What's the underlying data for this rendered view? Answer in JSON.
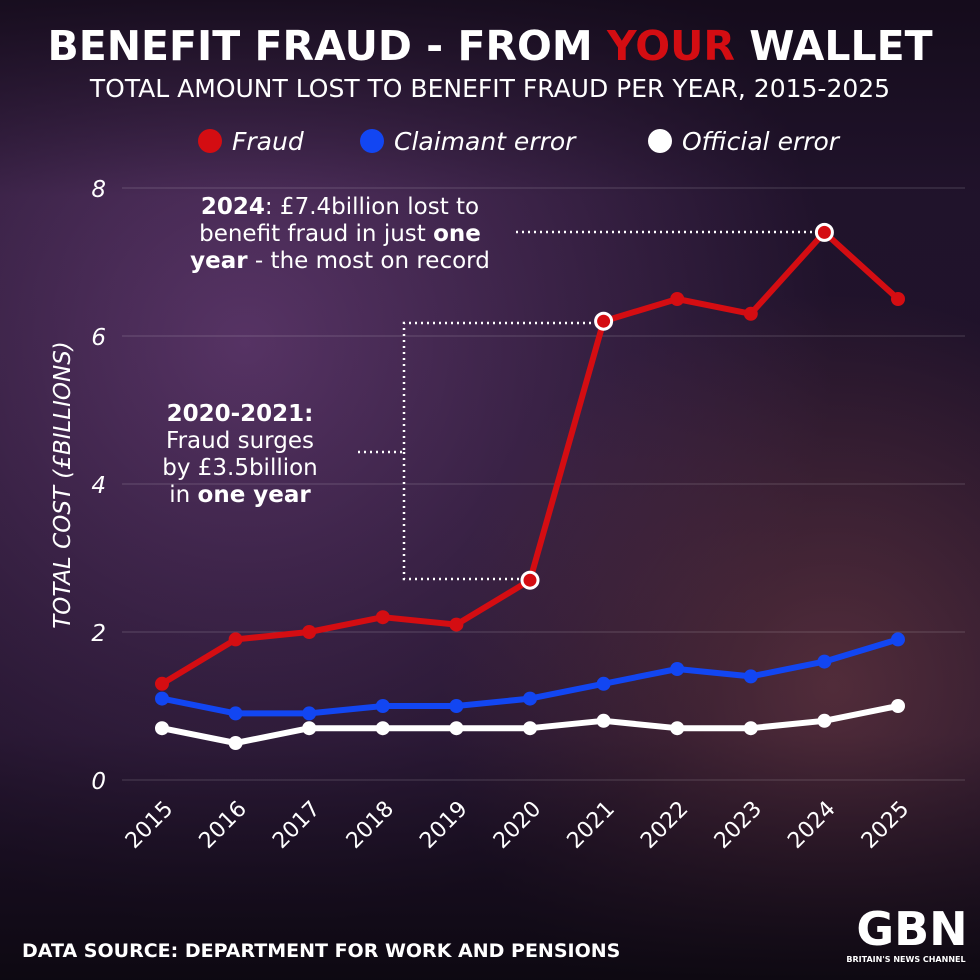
{
  "chart_data": {
    "type": "line",
    "title": {
      "before": "BENEFIT FRAUD - FROM",
      "highlight": "YOUR",
      "after": "WALLET"
    },
    "subtitle": "TOTAL AMOUNT LOST TO BENEFIT FRAUD PER YEAR, 2015-2025",
    "y_label": "TOTAL COST (£BILLIONS)",
    "categories": [
      "2015",
      "2016",
      "2017",
      "2018",
      "2019",
      "2020",
      "2021",
      "2022",
      "2023",
      "2024",
      "2025"
    ],
    "series": [
      {
        "name": "Fraud",
        "color": "#d40d12",
        "values": [
          1.3,
          1.9,
          2.0,
          2.2,
          2.1,
          2.7,
          6.2,
          6.5,
          6.3,
          7.4,
          6.5
        ]
      },
      {
        "name": "Claimant error",
        "color": "#1246f2",
        "values": [
          1.1,
          0.9,
          0.9,
          1.0,
          1.0,
          1.1,
          1.3,
          1.5,
          1.4,
          1.6,
          1.9
        ]
      },
      {
        "name": "Official error",
        "color": "#ffffff",
        "values": [
          0.7,
          0.5,
          0.7,
          0.7,
          0.7,
          0.7,
          0.8,
          0.7,
          0.7,
          0.8,
          1.0
        ]
      }
    ],
    "ylim": [
      0,
      8
    ],
    "yticks": [
      0,
      2,
      4,
      6,
      8
    ],
    "grid": true,
    "annotations": [
      {
        "lines": [
          [
            {
              "text": "2024",
              "bold": true
            },
            {
              "text": ": £7.4billion lost to"
            }
          ],
          [
            {
              "text": "benefit fraud in just "
            },
            {
              "text": "one",
              "bold": true
            }
          ],
          [
            {
              "text": "year",
              "bold": true
            },
            {
              "text": " - the most on record"
            }
          ]
        ]
      },
      {
        "lines": [
          [
            {
              "text": "2020-2021:",
              "bold": true
            }
          ],
          [
            {
              "text": "Fraud surges"
            }
          ],
          [
            {
              "text": "by £3.5billion"
            }
          ],
          [
            {
              "text": "in "
            },
            {
              "text": "one year",
              "bold": true
            }
          ]
        ]
      }
    ],
    "source": "DATA SOURCE: DEPARTMENT FOR WORK AND PENSIONS",
    "logo": {
      "name": "GBN",
      "tagline": "BRITAIN'S NEWS CHANNEL"
    }
  }
}
